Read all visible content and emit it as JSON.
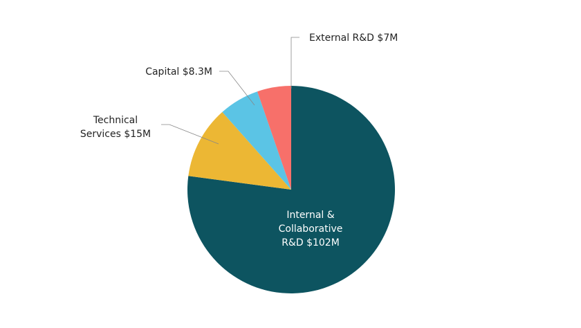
{
  "chart_data": {
    "type": "pie",
    "title": "",
    "start": "top",
    "direction": "clockwise",
    "slices": [
      {
        "label": "Internal & Collaborative R&D $102M",
        "lines": [
          "Internal &",
          "Collaborative",
          "R&D $102M"
        ],
        "value": 102,
        "color": "#0d5460"
      },
      {
        "label": "Technical Services $15M",
        "lines": [
          "Technical",
          "Services $15M"
        ],
        "value": 15,
        "color": "#ecb734"
      },
      {
        "label": "Capital $8.3M",
        "lines": [
          "Capital $8.3M"
        ],
        "value": 8.3,
        "color": "#5bc4e5"
      },
      {
        "label": "External R&D $7M",
        "lines": [
          "External R&D $7M"
        ],
        "value": 7,
        "color": "#f7706a"
      }
    ]
  }
}
